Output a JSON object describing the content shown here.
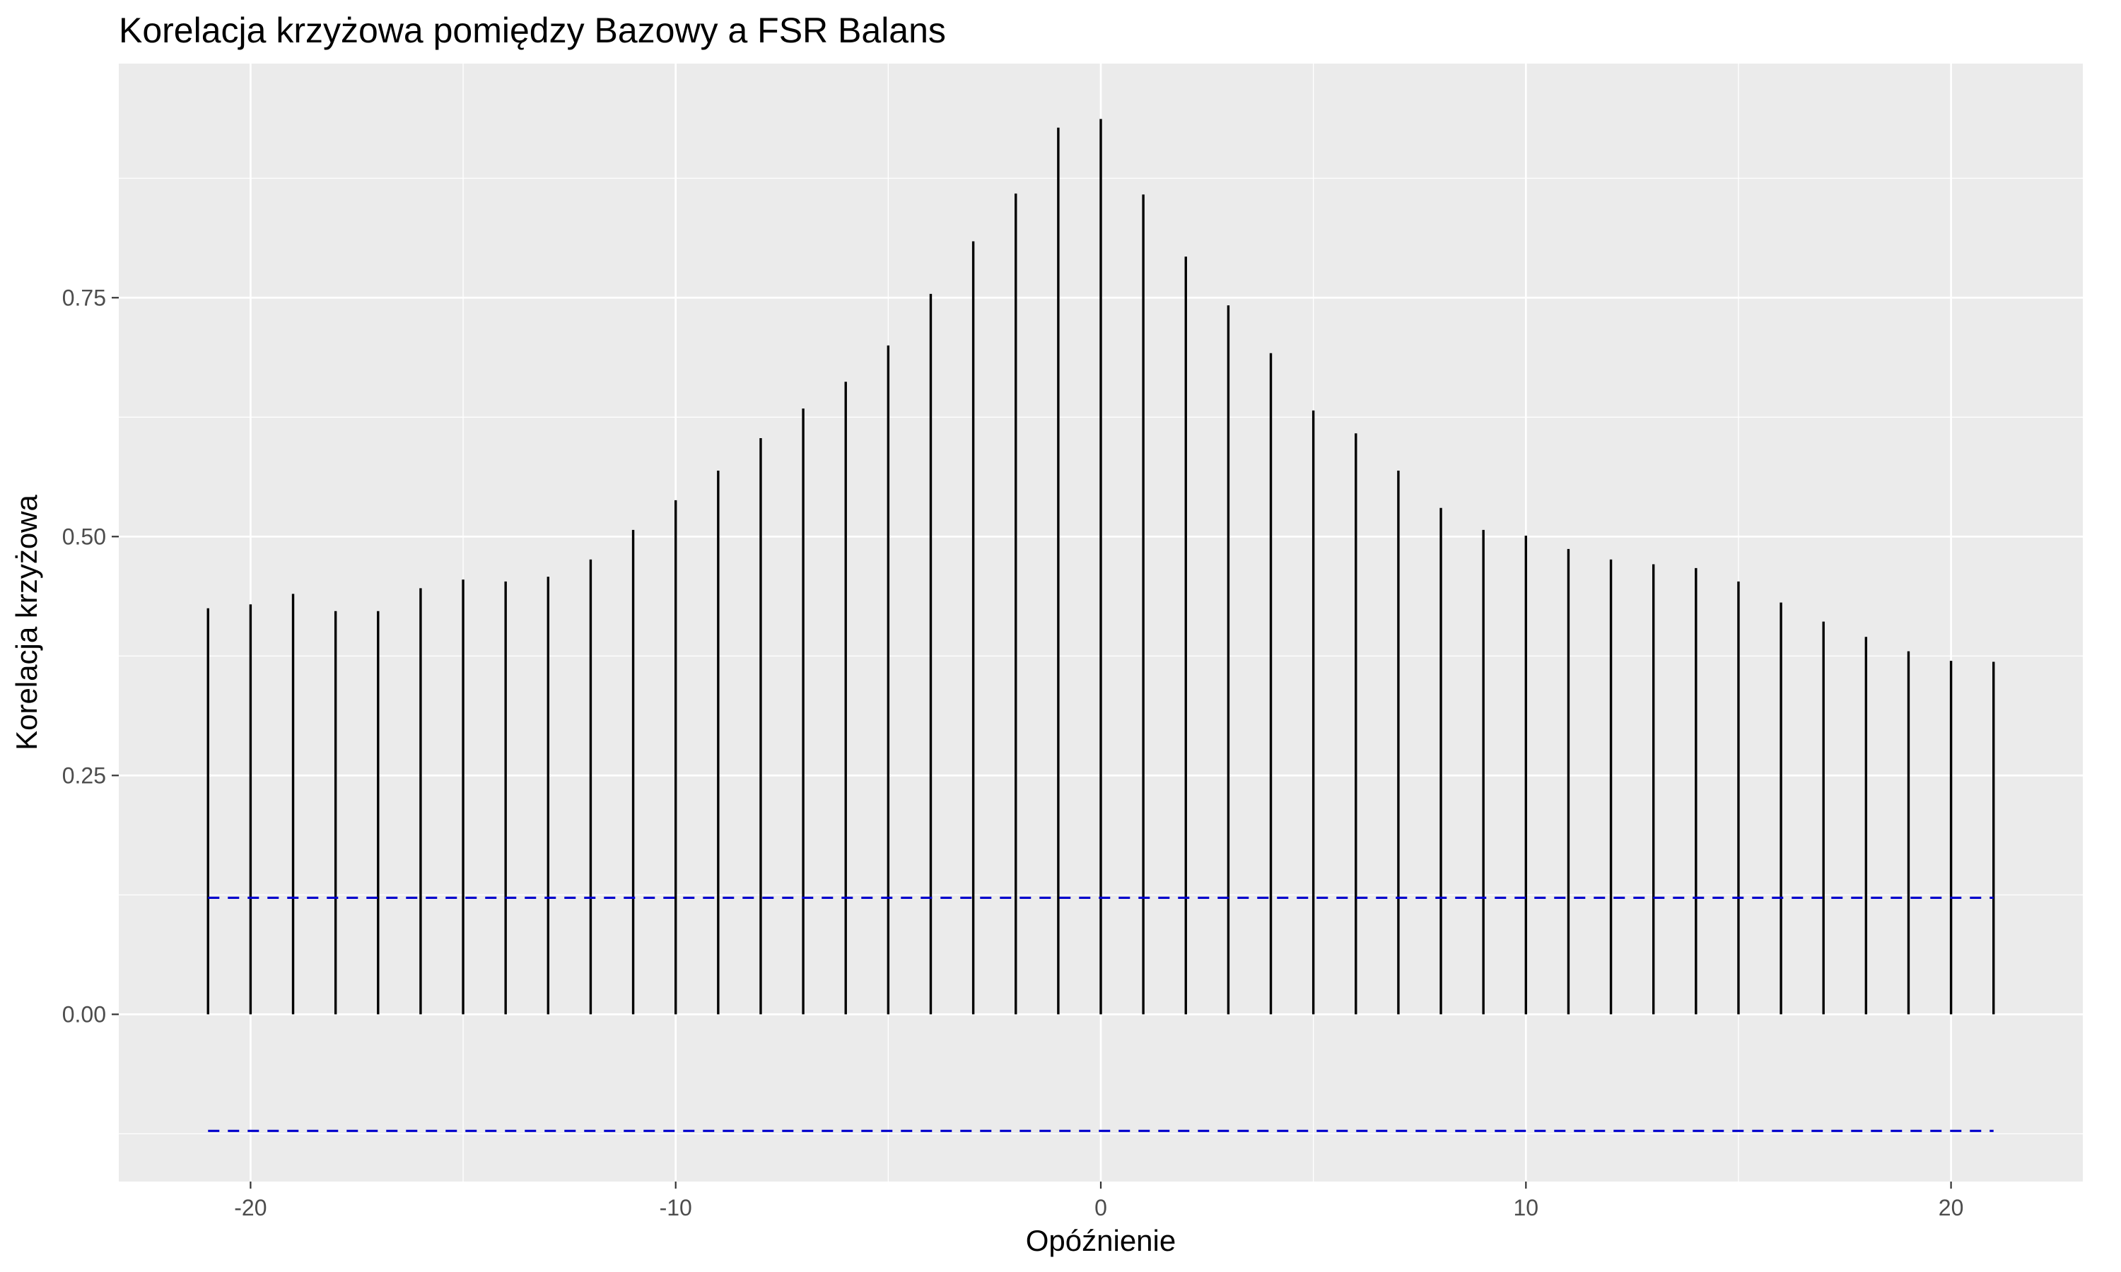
{
  "chart_data": {
    "type": "bar",
    "title": "Korelacja krzyżowa pomiędzy Bazowy a FSR Balans",
    "xlabel": "Opóźnienie",
    "ylabel": "Korelacja krzyżowa",
    "xlim": [
      -23.1,
      23.1
    ],
    "ylim": [
      -0.175,
      0.995
    ],
    "x_ticks": [
      -20,
      -10,
      0,
      10,
      20
    ],
    "x_tick_labels": [
      "-20",
      "-10",
      "0",
      "10",
      "20"
    ],
    "y_ticks": [
      0.0,
      0.25,
      0.5,
      0.75
    ],
    "y_tick_labels": [
      "0.00",
      "0.25",
      "0.50",
      "0.75"
    ],
    "grid": true,
    "x": [
      -21,
      -20,
      -19,
      -18,
      -17,
      -16,
      -15,
      -14,
      -13,
      -12,
      -11,
      -10,
      -9,
      -8,
      -7,
      -6,
      -5,
      -4,
      -3,
      -2,
      -1,
      0,
      1,
      2,
      3,
      4,
      5,
      6,
      7,
      8,
      9,
      10,
      11,
      12,
      13,
      14,
      15,
      16,
      17,
      18,
      19,
      20,
      21
    ],
    "values": [
      0.425,
      0.429,
      0.44,
      0.422,
      0.422,
      0.446,
      0.455,
      0.453,
      0.458,
      0.476,
      0.507,
      0.538,
      0.569,
      0.603,
      0.634,
      0.662,
      0.7,
      0.754,
      0.809,
      0.859,
      0.928,
      0.937,
      0.858,
      0.793,
      0.742,
      0.692,
      0.632,
      0.608,
      0.569,
      0.53,
      0.507,
      0.501,
      0.487,
      0.476,
      0.471,
      0.467,
      0.453,
      0.431,
      0.411,
      0.395,
      0.38,
      0.37,
      0.369
    ],
    "confidence_bounds": [
      0.122,
      -0.122
    ],
    "colors": {
      "panel": "#ebebeb",
      "grid": "#ffffff",
      "bars": "#000000",
      "bounds": "#0000cd"
    }
  }
}
